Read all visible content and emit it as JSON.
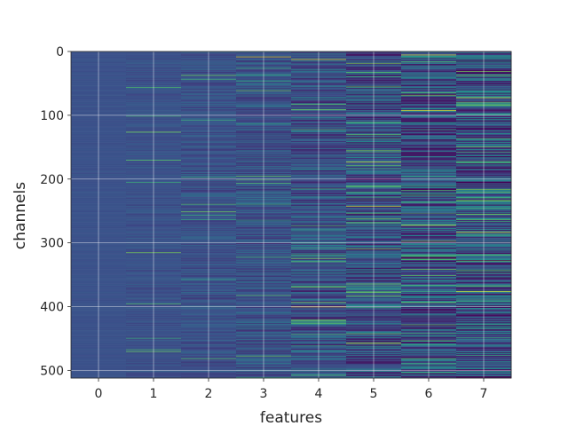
{
  "chart_data": {
    "type": "heatmap",
    "title": "",
    "xlabel": "features",
    "ylabel": "channels",
    "x_categories": [
      "0",
      "1",
      "2",
      "3",
      "4",
      "5",
      "6",
      "7"
    ],
    "y_ticks": [
      0,
      100,
      200,
      300,
      400,
      500
    ],
    "ylim": [
      512,
      0
    ],
    "n_channels": 512,
    "grid": true,
    "colormap": "viridis",
    "colormap_stops": [
      "#440154",
      "#3b528b",
      "#21918c",
      "#5ec962",
      "#fde725"
    ],
    "column_variability": [
      0.04,
      0.12,
      0.22,
      0.34,
      0.48,
      0.62,
      0.74,
      0.78
    ],
    "notable_highlights": [
      {
        "feature": 3,
        "channel": 8
      },
      {
        "feature": 4,
        "channel": 12
      },
      {
        "feature": 4,
        "channel": 400
      },
      {
        "feature": 5,
        "channel": 173
      },
      {
        "feature": 5,
        "channel": 242
      },
      {
        "feature": 5,
        "channel": 457
      },
      {
        "feature": 6,
        "channel": 5
      },
      {
        "feature": 6,
        "channel": 92
      },
      {
        "feature": 6,
        "channel": 272
      },
      {
        "feature": 7,
        "channel": 72
      },
      {
        "feature": 7,
        "channel": 283
      },
      {
        "feature": 7,
        "channel": 376
      }
    ]
  }
}
